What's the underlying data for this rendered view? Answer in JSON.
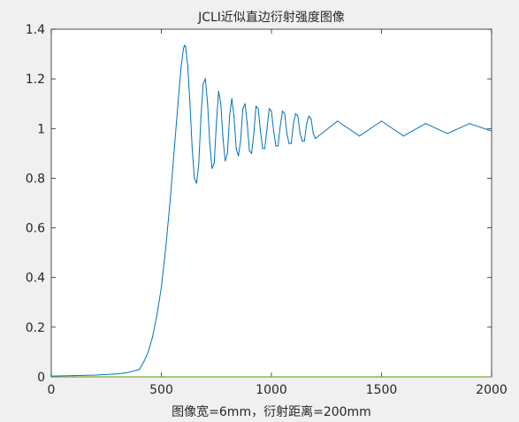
{
  "chart_data": {
    "type": "line",
    "title": "JCLI近似直边衍射强度图像",
    "xlabel": "图像宽=6mm，衍射距离=200mm",
    "ylabel": "",
    "xlim": [
      0,
      2000
    ],
    "ylim": [
      0,
      1.4
    ],
    "x_ticks": [
      "0",
      "500",
      "1000",
      "1500",
      "2000"
    ],
    "y_ticks": [
      "0",
      "0.2",
      "0.4",
      "0.6",
      "0.8",
      "1",
      "1.2",
      "1.4"
    ],
    "grid": false,
    "colors": {
      "series": "#0072bd",
      "baseline": "#77ac30",
      "axes": "#262626",
      "plot_bg": "#ffffff",
      "figure_bg": "#f0f0f0"
    },
    "series": [
      {
        "x": [
          0,
          100,
          200,
          300,
          350,
          400,
          420,
          440,
          460,
          480,
          500,
          520,
          540,
          560,
          580,
          590,
          600,
          605,
          610,
          620,
          630,
          640,
          650,
          660,
          670,
          680,
          690,
          700,
          710,
          720,
          730,
          740,
          750,
          760,
          770,
          780,
          790,
          800,
          810,
          820,
          830,
          840,
          850,
          860,
          870,
          880,
          890,
          900,
          910,
          920,
          930,
          940,
          950,
          960,
          970,
          980,
          990,
          1000,
          1010,
          1020,
          1030,
          1040,
          1050,
          1060,
          1070,
          1080,
          1090,
          1100,
          1110,
          1120,
          1130,
          1140,
          1150,
          1160,
          1170,
          1180,
          1190,
          1200,
          1300,
          1400,
          1500,
          1600,
          1700,
          1800,
          1900,
          2000
        ],
        "values": [
          0.003,
          0.005,
          0.007,
          0.012,
          0.018,
          0.03,
          0.06,
          0.1,
          0.16,
          0.25,
          0.36,
          0.52,
          0.71,
          0.93,
          1.15,
          1.25,
          1.32,
          1.335,
          1.33,
          1.25,
          1.1,
          0.92,
          0.8,
          0.78,
          0.86,
          1.05,
          1.18,
          1.2,
          1.1,
          0.94,
          0.84,
          0.86,
          1.02,
          1.15,
          1.1,
          0.96,
          0.87,
          0.9,
          1.05,
          1.12,
          1.05,
          0.92,
          0.89,
          0.95,
          1.08,
          1.1,
          1.02,
          0.91,
          0.9,
          0.98,
          1.09,
          1.08,
          0.99,
          0.92,
          0.92,
          1.0,
          1.08,
          1.07,
          0.99,
          0.93,
          0.93,
          1.01,
          1.07,
          1.06,
          0.98,
          0.94,
          0.94,
          1.02,
          1.06,
          1.05,
          0.98,
          0.95,
          0.95,
          1.02,
          1.05,
          1.04,
          0.98,
          0.96,
          1.03,
          0.97,
          1.03,
          0.97,
          1.02,
          0.98,
          1.02,
          0.99
        ]
      }
    ]
  }
}
